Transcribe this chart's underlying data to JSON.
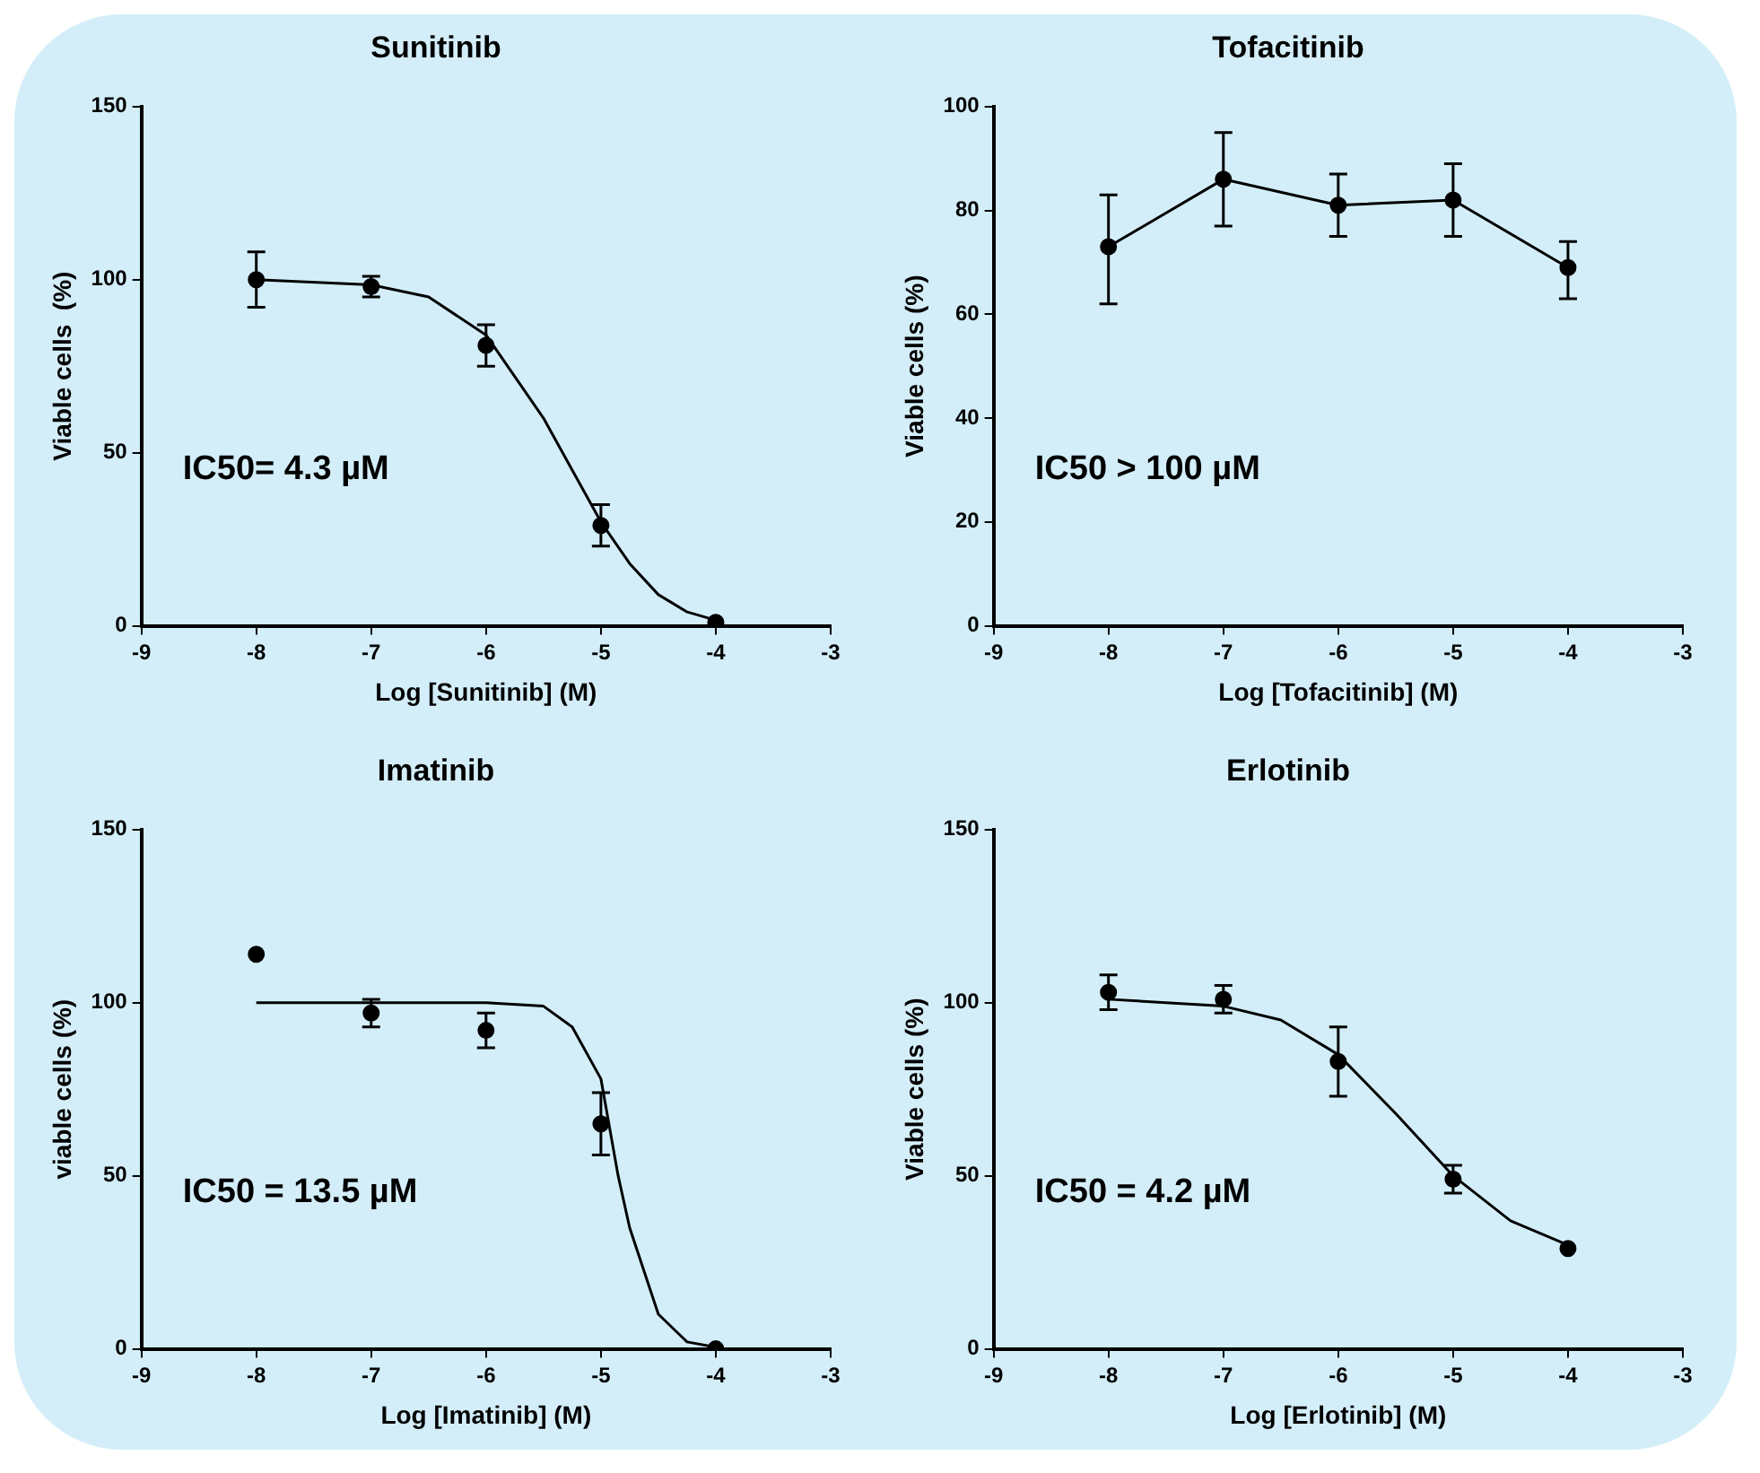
{
  "chart_data": [
    {
      "type": "scatter",
      "title": "Sunitinib",
      "xlabel": "Log [Sunitinib] (M)",
      "ylabel": "Viable cells  (%)",
      "xlim": [
        -9,
        -3
      ],
      "xticks": [
        -9,
        -8,
        -7,
        -6,
        -5,
        -4,
        -3
      ],
      "ylim": [
        0,
        150
      ],
      "yticks": [
        0,
        50,
        100,
        150
      ],
      "annotations": [
        "IC50= 4.3 µM"
      ],
      "x": [
        -8,
        -7,
        -6,
        -5,
        -4
      ],
      "series": [
        {
          "color": "#000000",
          "marker": "circle",
          "values": [
            100,
            98,
            81,
            29,
            1
          ],
          "errors": [
            8,
            3,
            6,
            6,
            null
          ]
        },
        {
          "type": "line",
          "color": "#000000",
          "marker": "none",
          "x": [
            -8,
            -7,
            -6.5,
            -6,
            -5.5,
            -5.25,
            -5,
            -4.75,
            -4.5,
            -4.25,
            -4
          ],
          "values": [
            100,
            98.5,
            95,
            84,
            60,
            45,
            30,
            18,
            9,
            4,
            1.6
          ]
        }
      ]
    },
    {
      "type": "line",
      "title": "Tofacitinib",
      "xlabel": "Log [Tofacitinib] (M)",
      "ylabel": "Viable cells (%)",
      "xlim": [
        -9,
        -3
      ],
      "xticks": [
        -9,
        -8,
        -7,
        -6,
        -5,
        -4,
        -3
      ],
      "ylim": [
        0,
        100
      ],
      "yticks": [
        0,
        20,
        40,
        60,
        80,
        100
      ],
      "annotations": [
        "IC50 > 100 µM"
      ],
      "x": [
        -8,
        -7,
        -6,
        -5,
        -4
      ],
      "series": [
        {
          "color": "#000000",
          "marker": "circle",
          "values": [
            73,
            86,
            81,
            82,
            69
          ],
          "errors": [
            [
              62,
              83
            ],
            [
              77,
              95
            ],
            [
              75,
              87
            ],
            [
              75,
              89
            ],
            [
              63,
              74
            ]
          ]
        }
      ]
    },
    {
      "type": "scatter",
      "title": "Imatinib",
      "xlabel": "Log [Imatinib] (M)",
      "ylabel": "viable cells (%)",
      "xlim": [
        -9,
        -3
      ],
      "xticks": [
        -9,
        -8,
        -7,
        -6,
        -5,
        -4,
        -3
      ],
      "ylim": [
        0,
        150
      ],
      "yticks": [
        0,
        50,
        100,
        150
      ],
      "annotations": [
        "IC50 = 13.5 µM"
      ],
      "x": [
        -8,
        -7,
        -6,
        -5,
        -4
      ],
      "series": [
        {
          "color": "#000000",
          "marker": "circle",
          "values": [
            114,
            97,
            92,
            65,
            0
          ],
          "errors": [
            null,
            4,
            5,
            9,
            null
          ]
        },
        {
          "type": "line",
          "color": "#000000",
          "marker": "none",
          "x": [
            -8,
            -7,
            -6,
            -5.5,
            -5.25,
            -5,
            -4.85,
            -4.75,
            -4.5,
            -4.25,
            -4
          ],
          "values": [
            100,
            100,
            100,
            99,
            93,
            78,
            50,
            35,
            10,
            2,
            0.5
          ]
        }
      ]
    },
    {
      "type": "scatter",
      "title": "Erlotinib",
      "xlabel": "Log [Erlotinib] (M)",
      "ylabel": "Viable cells (%)",
      "xlim": [
        -9,
        -3
      ],
      "xticks": [
        -9,
        -8,
        -7,
        -6,
        -5,
        -4,
        -3
      ],
      "ylim": [
        0,
        150
      ],
      "yticks": [
        0,
        50,
        100,
        150
      ],
      "annotations": [
        "IC50 = 4.2 µM"
      ],
      "x": [
        -8,
        -7,
        -6,
        -5,
        -4
      ],
      "series": [
        {
          "color": "#000000",
          "marker": "circle",
          "values": [
            103,
            101,
            83,
            49,
            29
          ],
          "errors": [
            5,
            4,
            10,
            4,
            null
          ]
        },
        {
          "type": "line",
          "color": "#000000",
          "marker": "none",
          "x": [
            -8,
            -7,
            -6.5,
            -6,
            -5.5,
            -5,
            -4.5,
            -4
          ],
          "values": [
            101,
            99,
            95,
            85,
            68,
            50,
            37,
            30
          ]
        }
      ]
    }
  ]
}
